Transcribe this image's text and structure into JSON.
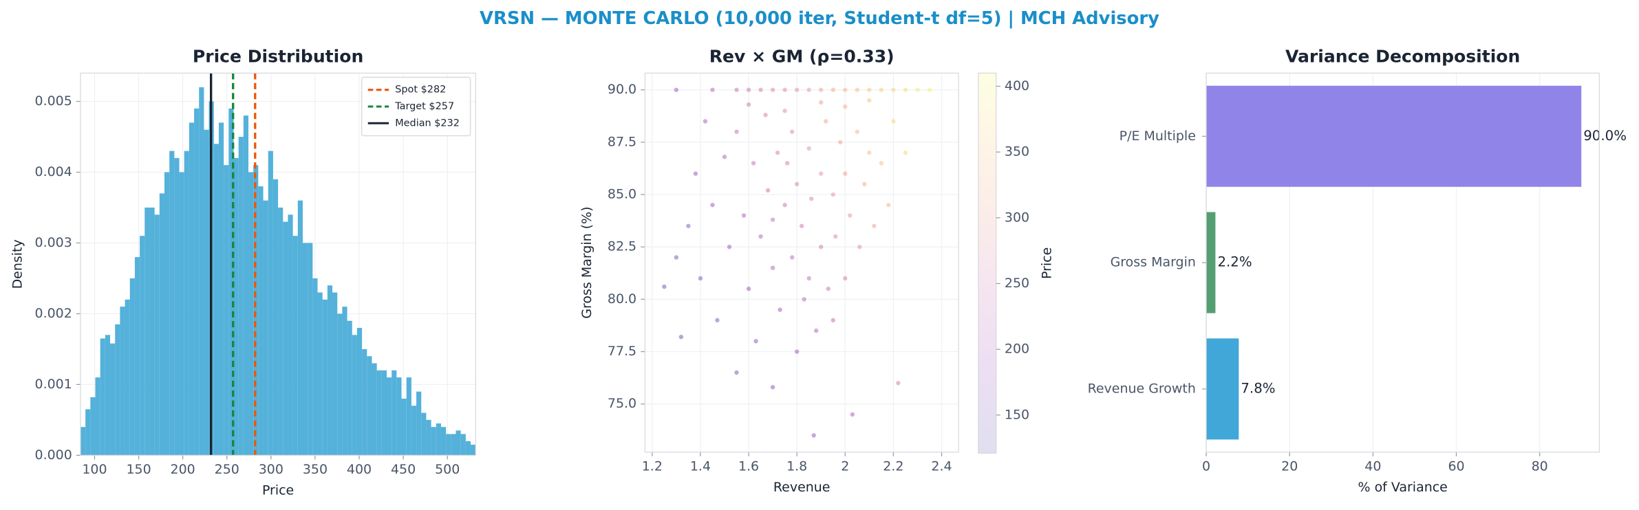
{
  "title": "VRSN — MONTE CARLO (10,000 iter, Student-t df=5) | MCH Advisory",
  "chart_data": [
    {
      "type": "histogram",
      "title": "Price Distribution",
      "x_label": "Price",
      "y_label": "Density",
      "bins": [
        84,
        89.6,
        95.2,
        100.8,
        106.4,
        112,
        117.6,
        123.2,
        128.8,
        134.4,
        140,
        145.6,
        151.2,
        156.8,
        162.4,
        168,
        173.6,
        179.2,
        184.8,
        190.4,
        196,
        201.6,
        207.2,
        212.8,
        218.4,
        224,
        229.6,
        235.2,
        240.8,
        246.4,
        252,
        257.6,
        263.2,
        268.8,
        274.4,
        280,
        285.6,
        291.2,
        296.8,
        302.4,
        308,
        313.6,
        319.2,
        324.8,
        330.4,
        336,
        341.6,
        347.2,
        352.8,
        358.4,
        364,
        369.6,
        375.2,
        380.8,
        386.4,
        392,
        397.6,
        403.2,
        408.8,
        414.4,
        420,
        425.6,
        431.2,
        436.8,
        442.4,
        448,
        453.6,
        459.2,
        464.8,
        470.4,
        476,
        481.6,
        487.2,
        492.8,
        498.4,
        504,
        509.6,
        515.2,
        520.8,
        526.4,
        532
      ],
      "values": [
        0.0004,
        0.00065,
        0.00082,
        0.0011,
        0.00165,
        0.0017,
        0.00158,
        0.00185,
        0.0021,
        0.0022,
        0.0025,
        0.0028,
        0.0031,
        0.0035,
        0.0035,
        0.0034,
        0.0037,
        0.004,
        0.0043,
        0.0042,
        0.004,
        0.0043,
        0.0047,
        0.0049,
        0.0052,
        0.0046,
        0.005,
        0.0044,
        0.0047,
        0.0041,
        0.0049,
        0.0042,
        0.0045,
        0.0048,
        0.004,
        0.0041,
        0.0038,
        0.0036,
        0.0043,
        0.0039,
        0.0035,
        0.0033,
        0.0034,
        0.0031,
        0.0036,
        0.003,
        0.003,
        0.0025,
        0.0023,
        0.0022,
        0.0024,
        0.0023,
        0.002,
        0.0021,
        0.0019,
        0.0017,
        0.0018,
        0.0015,
        0.0014,
        0.0013,
        0.0012,
        0.0012,
        0.0011,
        0.0012,
        0.0011,
        0.0008,
        0.0011,
        0.0007,
        0.0009,
        0.0006,
        0.0005,
        0.0004,
        0.00045,
        0.0004,
        0.0003,
        0.0003,
        0.00035,
        0.0003,
        0.0002,
        0.00015
      ],
      "color": "#4badd8",
      "xlim": [
        84,
        532
      ],
      "xticks": [
        100,
        150,
        200,
        250,
        300,
        350,
        400,
        450,
        500
      ],
      "ylim": [
        0,
        0.0054
      ],
      "yticks": [
        {
          "value": 0,
          "label": "0.000"
        },
        {
          "value": 0.001,
          "label": "0.001"
        },
        {
          "value": 0.002,
          "label": "0.002"
        },
        {
          "value": 0.003,
          "label": "0.003"
        },
        {
          "value": 0.004,
          "label": "0.004"
        },
        {
          "value": 0.005,
          "label": "0.005"
        }
      ],
      "vlines": [
        {
          "name": "Spot $282",
          "value": 282,
          "color": "#e8590c",
          "dashed": true
        },
        {
          "name": "Target $257",
          "value": 257,
          "color": "#16873a",
          "dashed": true
        },
        {
          "name": "Median $232",
          "value": 232,
          "color": "#1a2433",
          "dashed": false
        }
      ],
      "legend": "upper right",
      "grid": true
    },
    {
      "type": "scatter",
      "title": "Rev × GM (ρ=0.33)",
      "x_label": "Revenue",
      "y_label": "Gross Margin (%)",
      "x": [
        1.3,
        1.45,
        1.55,
        1.6,
        1.65,
        1.7,
        1.75,
        1.8,
        1.85,
        1.9,
        1.95,
        2.0,
        2.05,
        2.1,
        2.15,
        2.2,
        2.25,
        2.3,
        2.35,
        1.25,
        1.3,
        1.32,
        1.35,
        1.38,
        1.4,
        1.42,
        1.45,
        1.47,
        1.5,
        1.52,
        1.55,
        1.55,
        1.58,
        1.6,
        1.62,
        1.63,
        1.65,
        1.67,
        1.68,
        1.7,
        1.7,
        1.72,
        1.73,
        1.75,
        1.76,
        1.78,
        1.78,
        1.8,
        1.8,
        1.82,
        1.83,
        1.85,
        1.86,
        1.87,
        1.88,
        1.9,
        1.9,
        1.92,
        1.93,
        1.95,
        1.96,
        1.98,
        2.0,
        2.0,
        2.02,
        2.03,
        2.05,
        2.06,
        2.08,
        2.1,
        2.12,
        2.15,
        2.18,
        2.2,
        2.22,
        2.25,
        1.6,
        1.75,
        1.9,
        2.0,
        2.1,
        1.85,
        1.7,
        1.95
      ],
      "y": [
        90,
        90,
        90,
        90,
        90,
        90,
        90,
        90,
        90,
        90,
        90,
        90,
        90,
        90,
        90,
        90,
        90,
        90,
        90,
        80.6,
        82.0,
        78.2,
        83.5,
        86.0,
        81.0,
        88.5,
        84.5,
        79.0,
        86.8,
        82.5,
        76.5,
        88.0,
        84.0,
        80.5,
        86.5,
        78.0,
        83.0,
        88.8,
        85.2,
        81.5,
        75.8,
        87.0,
        79.5,
        84.5,
        86.5,
        82.0,
        88.0,
        77.5,
        85.5,
        83.5,
        80.0,
        87.2,
        84.8,
        73.5,
        78.5,
        86.0,
        82.5,
        88.5,
        80.5,
        85.0,
        83.0,
        87.5,
        81.0,
        86.0,
        84.0,
        74.5,
        88.0,
        82.5,
        85.5,
        87.0,
        83.5,
        86.5,
        84.5,
        88.5,
        76.0,
        87.0,
        89.3,
        89.0,
        89.4,
        89.2,
        89.5,
        81.0,
        83.8,
        79.0
      ],
      "c": [
        180,
        215,
        235,
        245,
        255,
        265,
        275,
        285,
        295,
        305,
        320,
        330,
        340,
        350,
        360,
        370,
        380,
        390,
        400,
        140,
        150,
        135,
        160,
        175,
        155,
        200,
        180,
        150,
        205,
        180,
        145,
        225,
        200,
        175,
        230,
        160,
        210,
        255,
        235,
        205,
        160,
        255,
        190,
        240,
        255,
        225,
        270,
        185,
        260,
        245,
        215,
        285,
        265,
        170,
        205,
        285,
        250,
        305,
        235,
        285,
        265,
        310,
        255,
        305,
        290,
        200,
        330,
        280,
        320,
        340,
        305,
        345,
        330,
        370,
        250,
        365,
        250,
        275,
        300,
        320,
        345,
        230,
        225,
        225
      ],
      "colormap": "plasma",
      "colorbar_label": "Price",
      "clim": [
        121,
        410
      ],
      "cticks": [
        150,
        200,
        250,
        300,
        350,
        400
      ],
      "xlim": [
        1.17,
        2.47
      ],
      "xticks": [
        1.2,
        1.4,
        1.6,
        1.8,
        2.0,
        2.2,
        2.4
      ],
      "ylim": [
        72.7,
        90.8
      ],
      "yticks": [
        {
          "value": 75,
          "label": "75.0"
        },
        77.5,
        {
          "value": 80,
          "label": "80.0"
        },
        82.5,
        {
          "value": 85,
          "label": "85.0"
        },
        87.5,
        {
          "value": 90,
          "label": "90.0"
        }
      ],
      "grid": true
    },
    {
      "type": "barh",
      "title": "Variance Decomposition",
      "x_label": "% of Variance",
      "categories": [
        "Revenue Growth",
        "Gross Margin",
        "P/E Multiple"
      ],
      "values": [
        7.8,
        2.2,
        90.0
      ],
      "value_labels": [
        "7.8%",
        "2.2%",
        "90.0%"
      ],
      "colors": [
        "#36a2d6",
        "#4b9a6a",
        "#8a7de8"
      ],
      "xlim": [
        0,
        94.3
      ],
      "xticks": [
        0,
        20,
        40,
        60,
        80
      ],
      "grid": true
    }
  ]
}
